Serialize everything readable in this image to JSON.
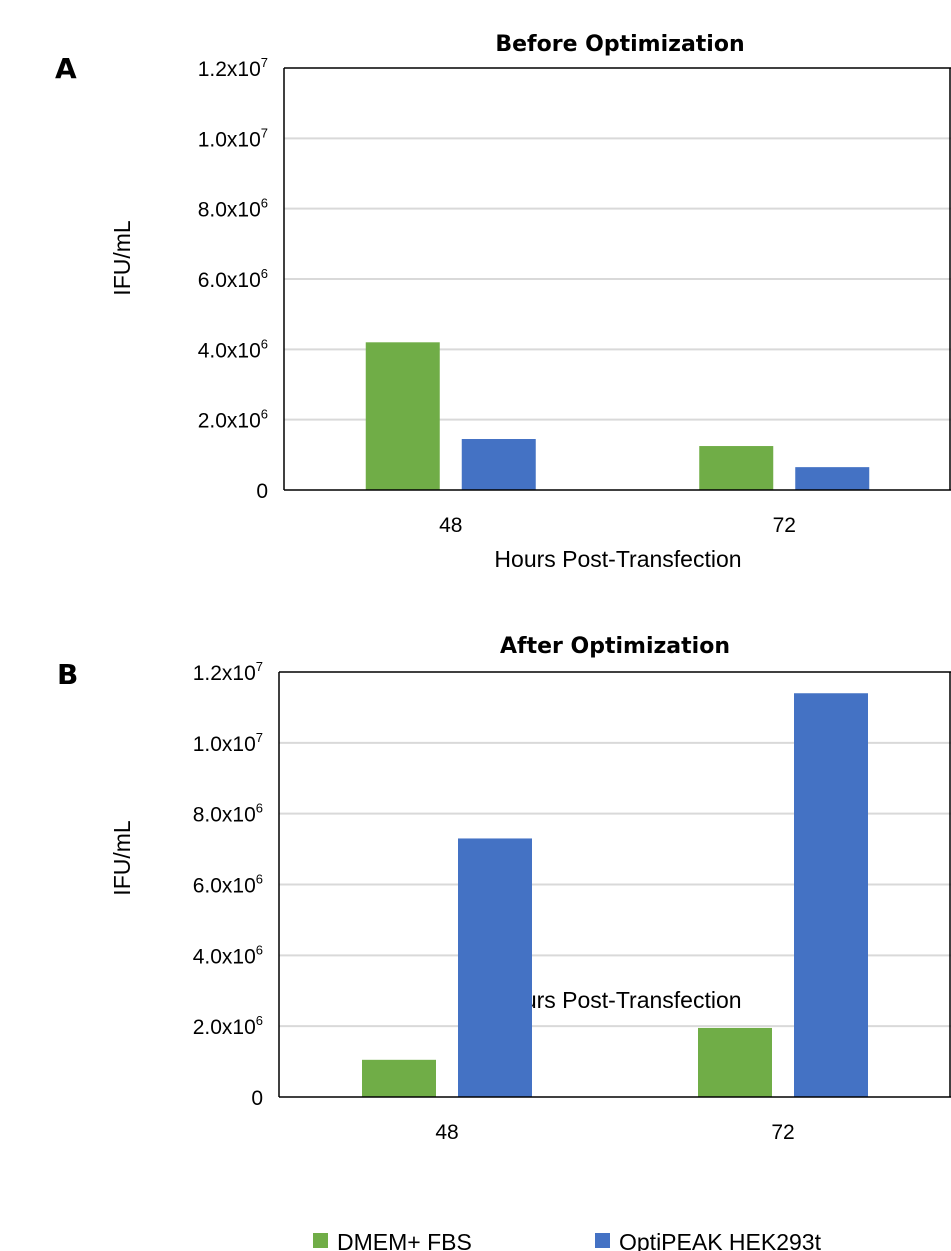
{
  "legend": [
    {
      "label": "DMEM+ FBS",
      "color": "#70ad47"
    },
    {
      "label": "OptiPEAK HEK293t",
      "color": "#4472c4"
    }
  ],
  "chart_data": [
    {
      "type": "bar",
      "panel": "A",
      "title": "Before Optimization",
      "xlabel": "Hours Post-Transfection",
      "ylabel": "IFU/mL",
      "categories": [
        "48",
        "72"
      ],
      "ylim": [
        0,
        12000000
      ],
      "yticks": [
        {
          "value": 0,
          "mantissa": "0",
          "exp": ""
        },
        {
          "value": 2000000,
          "mantissa": "2.0x10",
          "exp": "6"
        },
        {
          "value": 4000000,
          "mantissa": "4.0x10",
          "exp": "6"
        },
        {
          "value": 6000000,
          "mantissa": "6.0x10",
          "exp": "6"
        },
        {
          "value": 8000000,
          "mantissa": "8.0x10",
          "exp": "6"
        },
        {
          "value": 10000000,
          "mantissa": "1.0x10",
          "exp": "7"
        },
        {
          "value": 12000000,
          "mantissa": "1.2x10",
          "exp": "7"
        }
      ],
      "grid": true,
      "series": [
        {
          "name": "DMEM+ FBS",
          "color": "#70ad47",
          "values": [
            4200000,
            1250000
          ]
        },
        {
          "name": "OptiPEAK HEK293t",
          "color": "#4472c4",
          "values": [
            1450000,
            650000
          ]
        }
      ]
    },
    {
      "type": "bar",
      "panel": "B",
      "title": "After Optimization",
      "xlabel": "Hours Post-Transfection",
      "ylabel": "IFU/mL",
      "categories": [
        "48",
        "72"
      ],
      "ylim": [
        0,
        12000000
      ],
      "yticks": [
        {
          "value": 0,
          "mantissa": "0",
          "exp": ""
        },
        {
          "value": 2000000,
          "mantissa": "2.0x10",
          "exp": "6"
        },
        {
          "value": 4000000,
          "mantissa": "4.0x10",
          "exp": "6"
        },
        {
          "value": 6000000,
          "mantissa": "6.0x10",
          "exp": "6"
        },
        {
          "value": 8000000,
          "mantissa": "8.0x10",
          "exp": "6"
        },
        {
          "value": 10000000,
          "mantissa": "1.0x10",
          "exp": "7"
        },
        {
          "value": 12000000,
          "mantissa": "1.2x10",
          "exp": "7"
        }
      ],
      "grid": true,
      "series": [
        {
          "name": "DMEM+ FBS",
          "color": "#70ad47",
          "values": [
            1050000,
            1950000
          ]
        },
        {
          "name": "OptiPEAK HEK293t",
          "color": "#4472c4",
          "values": [
            7300000,
            11400000
          ]
        }
      ]
    }
  ]
}
